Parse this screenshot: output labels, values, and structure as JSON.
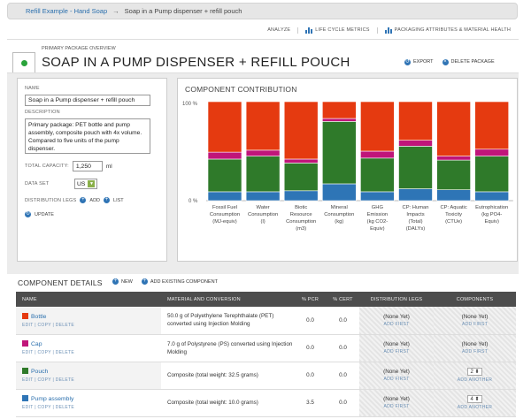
{
  "breadcrumb": {
    "link": "Refill Example - Hand Soap",
    "arrow": "→",
    "current": "Soap in a Pump dispenser + refill pouch"
  },
  "nav": {
    "analyze": "ANALYZE",
    "lifecycle": "LIFE CYCLE METRICS",
    "packaging": "PACKAGING ATTRIBUTES & MATERIAL HEALTH"
  },
  "header": {
    "subtitle": "PRIMARY PACKAGE OVERVIEW",
    "title": "SOAP IN A PUMP DISPENSER + REFILL POUCH",
    "export": "EXPORT",
    "delete": "DELETE PACKAGE"
  },
  "form": {
    "name_label": "NAME",
    "name_value": "Soap in a Pump dispenser + refill pouch",
    "desc_label": "DESCRIPTION",
    "desc_value": "Primary package: PET bottle and pump assembly, composite pouch with 4x volume. Compared to five units of the pump dispenser.",
    "capacity_label": "TOTAL CAPACITY:",
    "capacity_value": "1,250",
    "capacity_unit": "ml",
    "dataset_label": "DATA SET",
    "dataset_value": "US",
    "dist_label": "DISTRIBUTION LEGS",
    "dist_add": "ADD",
    "dist_list": "LIST",
    "update": "UPDATE"
  },
  "chart_title": "COMPONENT CONTRIBUTION",
  "chart_data": {
    "type": "bar",
    "stacked": true,
    "ylim": [
      0,
      100
    ],
    "yticks": [
      "100 %",
      "0 %"
    ],
    "categories": [
      "Fossil Fuel Consumption (MJ-equiv)",
      "Water Consumption (l)",
      "Biotic Resource Consumption (m3)",
      "Mineral Consumption (kg)",
      "GHG Emission (kg CO2-Equiv)",
      "CP: Human Impacts (Total) (DALYs)",
      "CP: Aquatic Toxicity (CTUe)",
      "Eutrophication (kg PO4-Equiv)"
    ],
    "category_lines": [
      [
        "Fossil Fuel",
        "Consumption",
        "(MJ-equiv)"
      ],
      [
        "Water",
        "Consumption",
        "(l)"
      ],
      [
        "Biotic",
        "Resource",
        "Consumption",
        "(m3)"
      ],
      [
        "Mineral",
        "Consumption",
        "(kg)"
      ],
      [
        "GHG",
        "Emission",
        "(kg CO2-",
        "Equiv)"
      ],
      [
        "CP: Human",
        "Impacts",
        "(Total)",
        "(DALYs)"
      ],
      [
        "CP: Aquatic",
        "Toxicity",
        "(CTUe)"
      ],
      [
        "Eutrophication",
        "(kg PO4-",
        "Equiv)"
      ]
    ],
    "series": [
      {
        "name": "Pump assembly",
        "color": "#2e75b6",
        "values": [
          9,
          9,
          10,
          17,
          9,
          12,
          11,
          9
        ]
      },
      {
        "name": "Pouch",
        "color": "#2f7a2a",
        "values": [
          33,
          36,
          28,
          63,
          34,
          43,
          30,
          36
        ]
      },
      {
        "name": "Cap",
        "color": "#c0157a",
        "values": [
          7,
          6,
          4,
          3,
          7,
          6,
          4,
          7
        ]
      },
      {
        "name": "Bottle",
        "color": "#e53a10",
        "values": [
          51,
          49,
          58,
          17,
          50,
          39,
          55,
          48
        ]
      }
    ]
  },
  "details": {
    "title": "COMPONENT DETAILS",
    "new": "NEW",
    "add_existing": "ADD EXISTING COMPONENT",
    "headers": [
      "NAME",
      "MATERIAL AND CONVERSION",
      "% PCR",
      "% CERT",
      "DISTRIBUTION LEGS",
      "COMPONENTS"
    ],
    "row_actions": [
      "EDIT",
      "COPY",
      "DELETE"
    ],
    "rows": [
      {
        "name": "Bottle",
        "color": "#e53a10",
        "material": "50.0 g of Polyethylene Terephthalate (PET) converted using Injection Molding",
        "pcr": "0.0",
        "cert": "0.0",
        "dist": "(None Yet)",
        "dist_action": "ADD FIRST",
        "comp": "(None Yet)",
        "comp_action": "ADD FIRST",
        "qty": ""
      },
      {
        "name": "Cap",
        "color": "#c0157a",
        "material": "7.0 g of Polystyrene (PS) converted using Injection Molding",
        "pcr": "0.0",
        "cert": "0.0",
        "dist": "(None Yet)",
        "dist_action": "ADD FIRST",
        "comp": "(None Yet)",
        "comp_action": "ADD FIRST",
        "qty": ""
      },
      {
        "name": "Pouch",
        "color": "#2f7a2a",
        "material": "Composite (total weight: 32.5 grams)",
        "pcr": "0.0",
        "cert": "0.0",
        "dist": "(None Yet)",
        "dist_action": "ADD FIRST",
        "comp": "",
        "comp_action": "ADD ANOTHER",
        "qty": "2"
      },
      {
        "name": "Pump assembly",
        "color": "#2e75b6",
        "material": "Composite (total weight: 10.0 grams)",
        "pcr": "3.5",
        "cert": "0.0",
        "dist": "(None Yet)",
        "dist_action": "ADD FIRST",
        "comp": "",
        "comp_action": "ADD ANOTHER",
        "qty": "4"
      }
    ]
  }
}
